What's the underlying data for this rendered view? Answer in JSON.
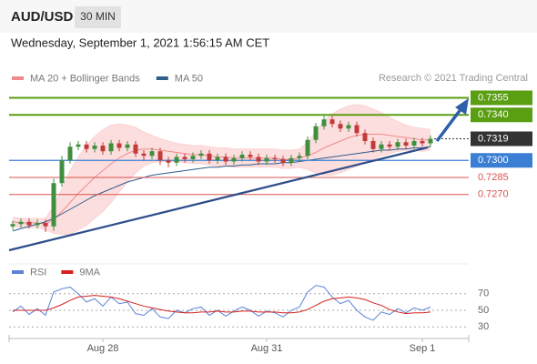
{
  "header": {
    "symbol": "AUD/USD",
    "timeframe": "30 MIN",
    "datetime": "Wednesday, September 1, 2021 1:56:15 AM CET",
    "credit": "Research © 2021 Trading Central"
  },
  "chart_data": [
    {
      "type": "candlestick",
      "categories": [
        null,
        null,
        null,
        null,
        null,
        null,
        null,
        null,
        null,
        null,
        null,
        "Aug 28",
        null,
        null,
        null,
        null,
        null,
        null,
        null,
        null,
        null,
        null,
        null,
        null,
        null,
        null,
        null,
        null,
        null,
        null,
        null,
        "Aug 31",
        null,
        null,
        null,
        null,
        null,
        null,
        null,
        null,
        null,
        null,
        null,
        null,
        null,
        null,
        null,
        null,
        null,
        null,
        "Sep 1",
        null
      ],
      "open": [
        0.7242,
        0.7244,
        0.7246,
        0.7243,
        0.7245,
        0.7242,
        0.728,
        0.73,
        0.7312,
        0.7314,
        0.731,
        0.7313,
        0.7308,
        0.7315,
        0.7311,
        0.7314,
        0.7306,
        0.7304,
        0.7308,
        0.73,
        0.7298,
        0.7303,
        0.7301,
        0.7304,
        0.7306,
        0.73,
        0.7303,
        0.7299,
        0.7302,
        0.7305,
        0.7303,
        0.7299,
        0.7302,
        0.7301,
        0.7298,
        0.7302,
        0.7304,
        0.7318,
        0.733,
        0.7336,
        0.7332,
        0.7328,
        0.7331,
        0.7324,
        0.7317,
        0.731,
        0.7314,
        0.7312,
        0.7316,
        0.7313,
        0.7317,
        0.7315
      ],
      "high": [
        0.7247,
        0.7249,
        0.7249,
        0.7248,
        0.7248,
        0.7284,
        0.7304,
        0.7316,
        0.7317,
        0.7317,
        0.7316,
        0.7316,
        0.7318,
        0.7318,
        0.7317,
        0.7317,
        0.7309,
        0.7311,
        0.7311,
        0.7303,
        0.7306,
        0.7306,
        0.7307,
        0.7309,
        0.7309,
        0.7306,
        0.7306,
        0.7305,
        0.7308,
        0.7308,
        0.7306,
        0.7305,
        0.7305,
        0.7304,
        0.7305,
        0.7307,
        0.7321,
        0.7333,
        0.7339,
        0.7339,
        0.7335,
        0.7334,
        0.7334,
        0.7327,
        0.732,
        0.7317,
        0.7317,
        0.7319,
        0.7319,
        0.732,
        0.732,
        0.7322
      ],
      "low": [
        0.7239,
        0.7241,
        0.724,
        0.724,
        0.7237,
        0.7238,
        0.7277,
        0.7297,
        0.7309,
        0.7307,
        0.7307,
        0.7305,
        0.7305,
        0.7308,
        0.7308,
        0.7303,
        0.73,
        0.7301,
        0.7296,
        0.7294,
        0.7295,
        0.7298,
        0.7298,
        0.7301,
        0.7297,
        0.7297,
        0.7296,
        0.7296,
        0.7299,
        0.73,
        0.7296,
        0.7296,
        0.7298,
        0.7295,
        0.7295,
        0.7299,
        0.7301,
        0.7315,
        0.7327,
        0.7329,
        0.7325,
        0.7325,
        0.7321,
        0.7314,
        0.7307,
        0.7307,
        0.7309,
        0.7309,
        0.731,
        0.731,
        0.7312,
        0.7312
      ],
      "close": [
        0.7244,
        0.7246,
        0.7243,
        0.7245,
        0.7242,
        0.728,
        0.73,
        0.7312,
        0.7314,
        0.731,
        0.7313,
        0.7308,
        0.7315,
        0.7311,
        0.7314,
        0.7306,
        0.7304,
        0.7308,
        0.73,
        0.7298,
        0.7303,
        0.7301,
        0.7304,
        0.7306,
        0.73,
        0.7303,
        0.7299,
        0.7302,
        0.7305,
        0.7303,
        0.7299,
        0.7302,
        0.7301,
        0.7298,
        0.7302,
        0.7304,
        0.7318,
        0.733,
        0.7336,
        0.7332,
        0.7328,
        0.7331,
        0.7324,
        0.7317,
        0.731,
        0.7314,
        0.7312,
        0.7316,
        0.7313,
        0.7317,
        0.7315,
        0.7319
      ],
      "up_color": "#3f8f3f",
      "down_color": "#c23b3b",
      "series": [
        {
          "name": "MA 20 + Bollinger Bands",
          "color": "#f08a8a",
          "band_color": "#fbd3d3",
          "values": [
            0.7246,
            0.7245,
            0.7245,
            0.7245,
            0.7244,
            0.7248,
            0.7255,
            0.7263,
            0.7271,
            0.7278,
            0.7285,
            0.7291,
            0.7297,
            0.7302,
            0.7306,
            0.7309,
            0.731,
            0.731,
            0.7309,
            0.7308,
            0.7307,
            0.7306,
            0.7305,
            0.7305,
            0.7304,
            0.7303,
            0.7303,
            0.7302,
            0.7302,
            0.7302,
            0.7302,
            0.7302,
            0.7302,
            0.7301,
            0.7301,
            0.7302,
            0.7304,
            0.7307,
            0.7311,
            0.7314,
            0.7317,
            0.732,
            0.7322,
            0.7323,
            0.7323,
            0.7323,
            0.7322,
            0.7321,
            0.732,
            0.7319,
            0.7318,
            0.7318
          ],
          "upper": [
            0.725,
            0.7249,
            0.7249,
            0.7249,
            0.7249,
            0.726,
            0.7275,
            0.7291,
            0.7303,
            0.7313,
            0.7321,
            0.7327,
            0.7331,
            0.7332,
            0.7331,
            0.7329,
            0.7325,
            0.7322,
            0.7319,
            0.7317,
            0.7315,
            0.7314,
            0.7313,
            0.7313,
            0.7312,
            0.7311,
            0.7311,
            0.731,
            0.731,
            0.731,
            0.731,
            0.731,
            0.731,
            0.7309,
            0.7309,
            0.731,
            0.7316,
            0.7325,
            0.7335,
            0.7341,
            0.7345,
            0.7348,
            0.7349,
            0.7348,
            0.7345,
            0.7342,
            0.7338,
            0.7334,
            0.7331,
            0.7329,
            0.7328,
            0.7327
          ],
          "lower": [
            0.7242,
            0.7241,
            0.7241,
            0.7241,
            0.7239,
            0.7236,
            0.7235,
            0.7235,
            0.7239,
            0.7243,
            0.7249,
            0.7255,
            0.7263,
            0.7272,
            0.7281,
            0.7289,
            0.7295,
            0.7298,
            0.7299,
            0.7299,
            0.7299,
            0.7298,
            0.7297,
            0.7297,
            0.7296,
            0.7295,
            0.7295,
            0.7294,
            0.7294,
            0.7294,
            0.7294,
            0.7294,
            0.7294,
            0.7293,
            0.7293,
            0.7294,
            0.7292,
            0.7289,
            0.7287,
            0.7287,
            0.7289,
            0.7292,
            0.7295,
            0.7298,
            0.7301,
            0.7304,
            0.7306,
            0.7308,
            0.7309,
            0.7309,
            0.7308,
            0.7309
          ]
        },
        {
          "name": "MA 50",
          "color": "#2f5d8c",
          "values": [
            0.7238,
            0.724,
            0.7242,
            0.7244,
            0.7246,
            0.7249,
            0.7253,
            0.7257,
            0.7261,
            0.7265,
            0.7269,
            0.7272,
            0.7275,
            0.7278,
            0.7281,
            0.7283,
            0.7285,
            0.7287,
            0.7288,
            0.7289,
            0.729,
            0.7291,
            0.7292,
            0.7293,
            0.7294,
            0.7294,
            0.7295,
            0.7295,
            0.7296,
            0.7296,
            0.7297,
            0.7297,
            0.7297,
            0.7298,
            0.7298,
            0.7299,
            0.73,
            0.7301,
            0.7302,
            0.7303,
            0.7304,
            0.7305,
            0.7306,
            0.7307,
            0.7308,
            0.7309,
            0.7309,
            0.731,
            0.731,
            0.7311,
            0.7311,
            0.7312
          ]
        }
      ],
      "levels": [
        {
          "value": 0.7355,
          "label": "0.7355",
          "color": "#5a9e12",
          "box": true,
          "dashed": false
        },
        {
          "value": 0.734,
          "label": "0.7340",
          "color": "#5a9e12",
          "box": true,
          "dashed": false
        },
        {
          "value": 0.7319,
          "label": "0.7319",
          "color": "#333333",
          "box": true,
          "dashed": true
        },
        {
          "value": 0.73,
          "label": "0.7300",
          "color": "#3b7fd4",
          "box": true,
          "dashed": false
        },
        {
          "value": 0.7285,
          "label": "0.7285",
          "color": "#d9534f",
          "box": false,
          "dashed": false
        },
        {
          "value": 0.727,
          "label": "0.7270",
          "color": "#d9534f",
          "box": false,
          "dashed": false
        }
      ],
      "ylim": [
        0.7213,
        0.7365
      ]
    },
    {
      "type": "line",
      "series": [
        {
          "name": "RSI",
          "color": "#5b82d6",
          "values": [
            48,
            55,
            45,
            52,
            44,
            72,
            76,
            78,
            70,
            60,
            64,
            55,
            66,
            58,
            60,
            46,
            44,
            52,
            42,
            40,
            50,
            47,
            52,
            54,
            44,
            50,
            43,
            49,
            54,
            50,
            43,
            49,
            47,
            42,
            50,
            54,
            72,
            80,
            78,
            66,
            58,
            62,
            50,
            42,
            38,
            48,
            45,
            52,
            47,
            53,
            50,
            54
          ]
        },
        {
          "name": "9MA",
          "color": "#d62020",
          "values": [
            50,
            50,
            50,
            50,
            50,
            53,
            57,
            62,
            66,
            67,
            68,
            67,
            66,
            64,
            61,
            58,
            55,
            53,
            51,
            49,
            48,
            47,
            47,
            48,
            48,
            49,
            48,
            48,
            49,
            49,
            48,
            48,
            48,
            47,
            47,
            48,
            51,
            56,
            61,
            64,
            65,
            66,
            65,
            63,
            59,
            56,
            51,
            48,
            46,
            47,
            47,
            48
          ]
        }
      ],
      "ylim": [
        16,
        84
      ],
      "yticks": [
        70,
        50,
        30
      ]
    }
  ]
}
